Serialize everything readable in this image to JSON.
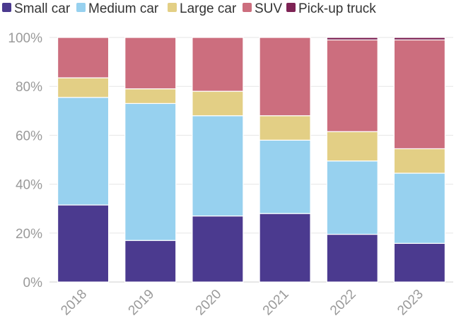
{
  "chart_data": {
    "type": "bar",
    "stacked": true,
    "title": "",
    "xlabel": "",
    "ylabel": "",
    "ylim": [
      0,
      100
    ],
    "y_ticks": [
      "0%",
      "20%",
      "40%",
      "60%",
      "80%",
      "100%"
    ],
    "categories": [
      "2018",
      "2019",
      "2020",
      "2021",
      "2022",
      "2023"
    ],
    "legend_position": "top-left",
    "grid": true,
    "series": [
      {
        "name": "Small car",
        "color": "#4b3a8f",
        "values": [
          31.5,
          17.0,
          27.0,
          28.0,
          19.5,
          15.8
        ]
      },
      {
        "name": "Medium car",
        "color": "#97d1ef",
        "values": [
          44.0,
          56.0,
          41.0,
          30.0,
          30.0,
          28.7
        ]
      },
      {
        "name": "Large car",
        "color": "#e3cf85",
        "values": [
          8.0,
          6.0,
          10.0,
          10.0,
          12.0,
          10.0
        ]
      },
      {
        "name": "SUV",
        "color": "#cc6e7e",
        "values": [
          16.5,
          21.0,
          22.0,
          32.0,
          37.5,
          44.5
        ]
      },
      {
        "name": "Pick-up truck",
        "color": "#7e2355",
        "values": [
          0.0,
          0.0,
          0.0,
          0.0,
          1.0,
          1.0
        ]
      }
    ]
  }
}
